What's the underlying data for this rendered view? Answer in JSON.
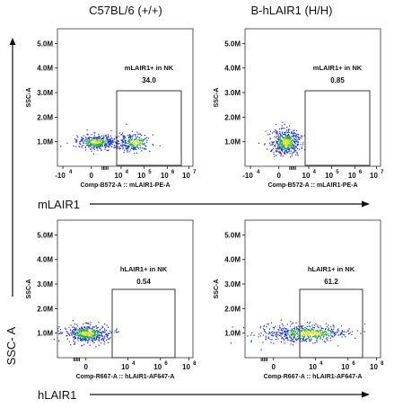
{
  "column_titles": [
    "C57BL/6 (+/+)",
    "B-hLAIR1 (H/H)"
  ],
  "side_axis_label": "SSC- A",
  "row_axis_labels": [
    "mLAIR1",
    "hLAIR1"
  ],
  "colors": {
    "density_low": "#1a33cc",
    "density_mid": "#22aa44",
    "density_high": "#dddd22",
    "frame": "#333333"
  },
  "chart_data": [
    {
      "type": "scatter",
      "ylabel": "SSC-A",
      "xlabel": "Comp-B572-A :: mLAIR1-PE-A",
      "yticks": [
        "1.0M",
        "2.0M",
        "3.0M",
        "4.0M",
        "5.0M"
      ],
      "yvalues": [
        1.0,
        2.0,
        3.0,
        4.0,
        5.0
      ],
      "ylim": [
        0,
        5.6
      ],
      "xticks": [
        {
          "base": "-10",
          "exp": "4"
        },
        {
          "base": "0",
          "exp": ""
        },
        {
          "base": "10",
          "exp": "4"
        },
        {
          "base": "10",
          "exp": "5"
        },
        {
          "base": "10",
          "exp": "6"
        },
        {
          "base": "10",
          "exp": "7"
        }
      ],
      "gate": {
        "name": "mLAIR1+ in NK",
        "value": "34.0"
      },
      "population": "split"
    },
    {
      "type": "scatter",
      "ylabel": "SSC-A",
      "xlabel": "Comp-B572-A :: mLAIR1-PE-A",
      "yticks": [
        "1.0M",
        "2.0M",
        "3.0M",
        "4.0M",
        "5.0M"
      ],
      "yvalues": [
        1.0,
        2.0,
        3.0,
        4.0,
        5.0
      ],
      "ylim": [
        0,
        5.6
      ],
      "xticks": [
        {
          "base": "-10",
          "exp": "4"
        },
        {
          "base": "0",
          "exp": ""
        },
        {
          "base": "10",
          "exp": "4"
        },
        {
          "base": "10",
          "exp": "5"
        },
        {
          "base": "10",
          "exp": "6"
        },
        {
          "base": "10",
          "exp": "7"
        }
      ],
      "gate": {
        "name": "mLAIR1+ in NK",
        "value": "0.85"
      },
      "population": "negative"
    },
    {
      "type": "scatter",
      "ylabel": "SSC-A",
      "xlabel": "Comp-R667-A :: hLAIR1-AF647-A",
      "yticks": [
        "1.0M",
        "2.0M",
        "3.0M",
        "4.0M",
        "5.0M"
      ],
      "yvalues": [
        1.0,
        2.0,
        3.0,
        4.0,
        5.0
      ],
      "ylim": [
        0,
        5.6
      ],
      "xticks": [
        {
          "base": "0",
          "exp": ""
        },
        {
          "base": "10",
          "exp": "4"
        },
        {
          "base": "10",
          "exp": "6"
        },
        {
          "base": "10",
          "exp": "8"
        }
      ],
      "gate": {
        "name": "hLAIR1+ in NK",
        "value": "0.54"
      },
      "population": "negative"
    },
    {
      "type": "scatter",
      "ylabel": "SSC-A",
      "xlabel": "Comp-R667-A :: hLAIR1-AF647-A",
      "yticks": [
        "1.0M",
        "2.0M",
        "3.0M",
        "4.0M",
        "5.0M"
      ],
      "yvalues": [
        1.0,
        2.0,
        3.0,
        4.0,
        5.0
      ],
      "ylim": [
        0,
        5.6
      ],
      "xticks": [
        {
          "base": "0",
          "exp": ""
        },
        {
          "base": "10",
          "exp": "4"
        },
        {
          "base": "10",
          "exp": "6"
        },
        {
          "base": "10",
          "exp": "8"
        }
      ],
      "gate": {
        "name": "hLAIR1+ in NK",
        "value": "61.2"
      },
      "population": "positive"
    }
  ]
}
